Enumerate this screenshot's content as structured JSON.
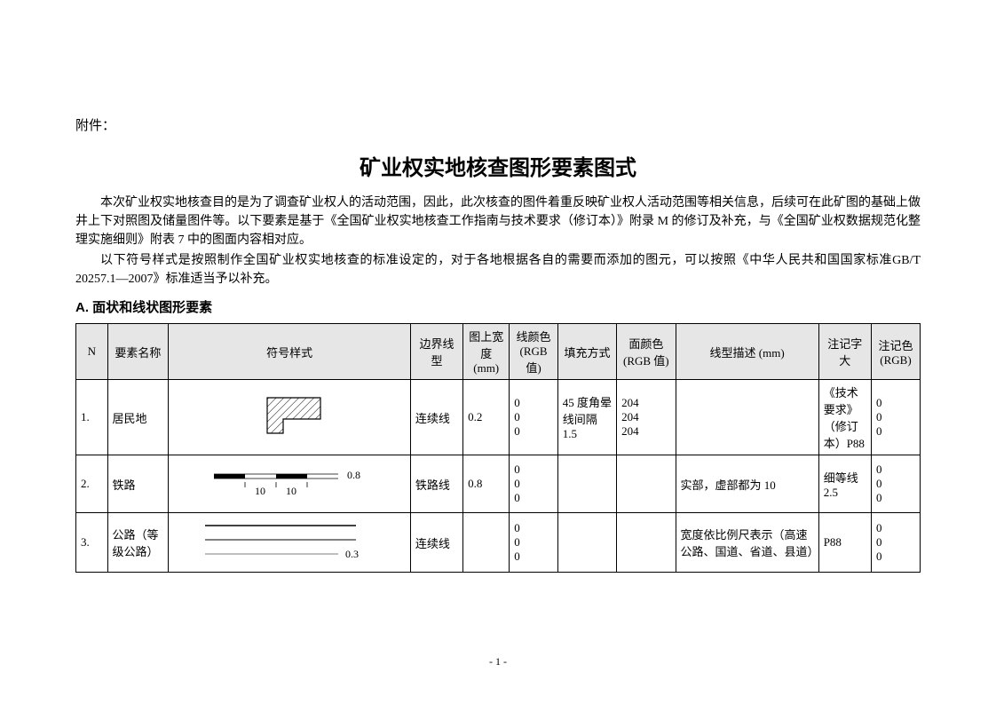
{
  "attachment_label": "附件：",
  "main_title": "矿业权实地核查图形要素图式",
  "paragraphs": [
    "本次矿业权实地核查目的是为了调查矿业权人的活动范围，因此，此次核查的图件着重反映矿业权人活动范围等相关信息，后续可在此矿图的基础上做井上下对照图及储量图件等。以下要素是基于《全国矿业权实地核查工作指南与技术要求（修订本）》附录 M 的修订及补充，与《全国矿业权数据规范化整理实施细则》附表 7 中的图面内容相对应。",
    "以下符号样式是按照制作全国矿业权实地核查的标准设定的，对于各地根据各自的需要而添加的图元，可以按照《中华人民共和国国家标准GB/T 20257.1—2007》标准适当予以补充。"
  ],
  "section_header": "A. 面状和线状图形要素",
  "table": {
    "headers": {
      "n": "N",
      "name": "要素名称",
      "symbol": "符号样式",
      "border_type": "边界线型",
      "width": "图上宽度 (mm)",
      "line_color": "线颜色 (RGB值)",
      "fill_style": "填充方式",
      "area_color": "面颜色 (RGB 值)",
      "line_desc": "线型描述 (mm)",
      "note_size": "注记字大",
      "note_color": "注记色 (RGB)"
    },
    "rows": [
      {
        "n": "1.",
        "name": "居民地",
        "symbol_type": "house",
        "border_type": "连续线",
        "width": "0.2",
        "line_color": "0\n0\n0",
        "fill_style": "45 度角晕线间隔 1.5",
        "area_color": "204\n204\n204",
        "line_desc": "",
        "note_size": "《技术要求》（修订本）P88",
        "note_color": "0\n0\n0"
      },
      {
        "n": "2.",
        "name": "铁路",
        "symbol_type": "rail",
        "border_type": "铁路线",
        "width": "0.8",
        "line_color": "0\n0\n0",
        "fill_style": "",
        "area_color": "",
        "line_desc": "实部，虚部都为 10",
        "note_size": "细等线 2.5",
        "note_color": "0\n0\n0"
      },
      {
        "n": "3.",
        "name": "公路（等级公路）",
        "symbol_type": "road",
        "border_type": "连续线",
        "width": "",
        "line_color": "0\n0\n0",
        "fill_style": "",
        "area_color": "",
        "line_desc": "宽度依比例尺表示（高速公路、国道、省道、县道）",
        "note_size": "P88",
        "note_color": "0\n0\n0"
      }
    ]
  },
  "page_number": "- 1 -",
  "colors": {
    "background": "#ffffff",
    "text": "#000000",
    "header_bg": "#e6e6e6",
    "border": "#000000"
  }
}
